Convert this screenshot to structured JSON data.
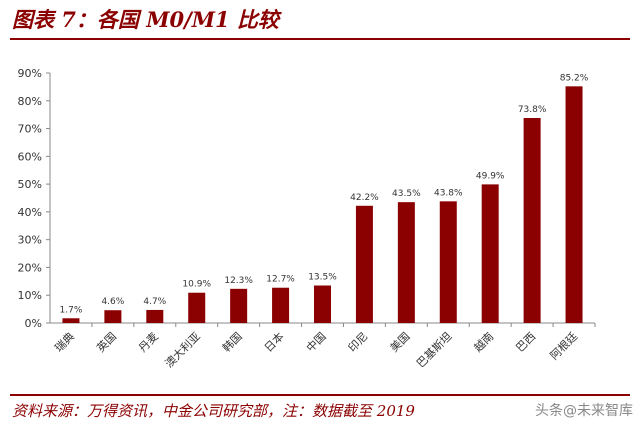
{
  "title": "图表 7：各国 M0/M1 比较",
  "source": "资料来源：万得资讯，中金公司研究部，注：数据截至 2019",
  "watermark": "头条@未来智库",
  "colors": {
    "bar": "#8b0000",
    "axis": "#888888",
    "text": "#333333",
    "accent": "#8b0000"
  },
  "chart_data": {
    "type": "bar",
    "categories": [
      "瑞典",
      "英国",
      "丹麦",
      "澳大利亚",
      "韩国",
      "日本",
      "中国",
      "印尼",
      "美国",
      "巴基斯坦",
      "越南",
      "巴西",
      "阿根廷"
    ],
    "values": [
      1.7,
      4.6,
      4.7,
      10.9,
      12.3,
      12.7,
      13.5,
      42.2,
      43.5,
      43.8,
      49.9,
      73.8,
      85.2
    ],
    "data_labels": [
      "1.7%",
      "4.6%",
      "4.7%",
      "10.9%",
      "12.3%",
      "12.7%",
      "13.5%",
      "42.2%",
      "43.5%",
      "43.8%",
      "49.9%",
      "73.8%",
      "85.2%"
    ],
    "yticks": [
      "0%",
      "10%",
      "20%",
      "30%",
      "40%",
      "50%",
      "60%",
      "70%",
      "80%",
      "90%"
    ],
    "ylim": [
      0,
      90
    ],
    "grid": false,
    "title": "图表 7：各国 M0/M1 比较"
  }
}
